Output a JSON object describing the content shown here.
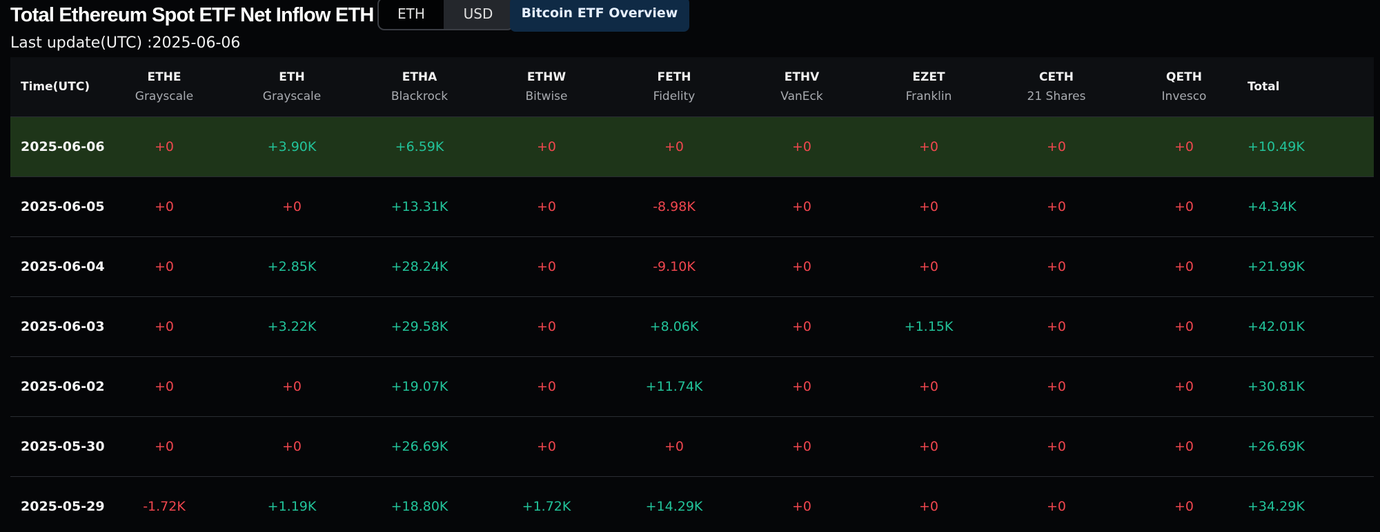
{
  "header": {
    "title": "Total Ethereum Spot ETF Net Inflow ETH",
    "toggle": {
      "eth": "ETH",
      "usd": "USD",
      "selected": "ETH"
    },
    "overview_button": "Bitcoin ETF Overview",
    "last_update": "Last update(UTC) :2025-06-06"
  },
  "colors": {
    "positive": "#22c39a",
    "negative": "#f0464e",
    "highlight_row": "#1e3519",
    "overview_button_bg": "#0f2a45"
  },
  "table": {
    "columns": [
      {
        "code": "Time(UTC)",
        "issuer": ""
      },
      {
        "code": "ETHE",
        "issuer": "Grayscale"
      },
      {
        "code": "ETH",
        "issuer": "Grayscale"
      },
      {
        "code": "ETHA",
        "issuer": "Blackrock"
      },
      {
        "code": "ETHW",
        "issuer": "Bitwise"
      },
      {
        "code": "FETH",
        "issuer": "Fidelity"
      },
      {
        "code": "ETHV",
        "issuer": "VanEck"
      },
      {
        "code": "EZET",
        "issuer": "Franklin"
      },
      {
        "code": "CETH",
        "issuer": "21 Shares"
      },
      {
        "code": "QETH",
        "issuer": "Invesco"
      },
      {
        "code": "Total",
        "issuer": ""
      }
    ],
    "rows": [
      {
        "date": "2025-06-06",
        "values": [
          "+0",
          "+3.90K",
          "+6.59K",
          "+0",
          "+0",
          "+0",
          "+0",
          "+0",
          "+0"
        ],
        "total": "+10.49K"
      },
      {
        "date": "2025-06-05",
        "values": [
          "+0",
          "+0",
          "+13.31K",
          "+0",
          "-8.98K",
          "+0",
          "+0",
          "+0",
          "+0"
        ],
        "total": "+4.34K"
      },
      {
        "date": "2025-06-04",
        "values": [
          "+0",
          "+2.85K",
          "+28.24K",
          "+0",
          "-9.10K",
          "+0",
          "+0",
          "+0",
          "+0"
        ],
        "total": "+21.99K"
      },
      {
        "date": "2025-06-03",
        "values": [
          "+0",
          "+3.22K",
          "+29.58K",
          "+0",
          "+8.06K",
          "+0",
          "+1.15K",
          "+0",
          "+0"
        ],
        "total": "+42.01K"
      },
      {
        "date": "2025-06-02",
        "values": [
          "+0",
          "+0",
          "+19.07K",
          "+0",
          "+11.74K",
          "+0",
          "+0",
          "+0",
          "+0"
        ],
        "total": "+30.81K"
      },
      {
        "date": "2025-05-30",
        "values": [
          "+0",
          "+0",
          "+26.69K",
          "+0",
          "+0",
          "+0",
          "+0",
          "+0",
          "+0"
        ],
        "total": "+26.69K"
      },
      {
        "date": "2025-05-29",
        "values": [
          "-1.72K",
          "+1.19K",
          "+18.80K",
          "+1.72K",
          "+14.29K",
          "+0",
          "+0",
          "+0",
          "+0"
        ],
        "total": "+34.29K"
      }
    ]
  }
}
